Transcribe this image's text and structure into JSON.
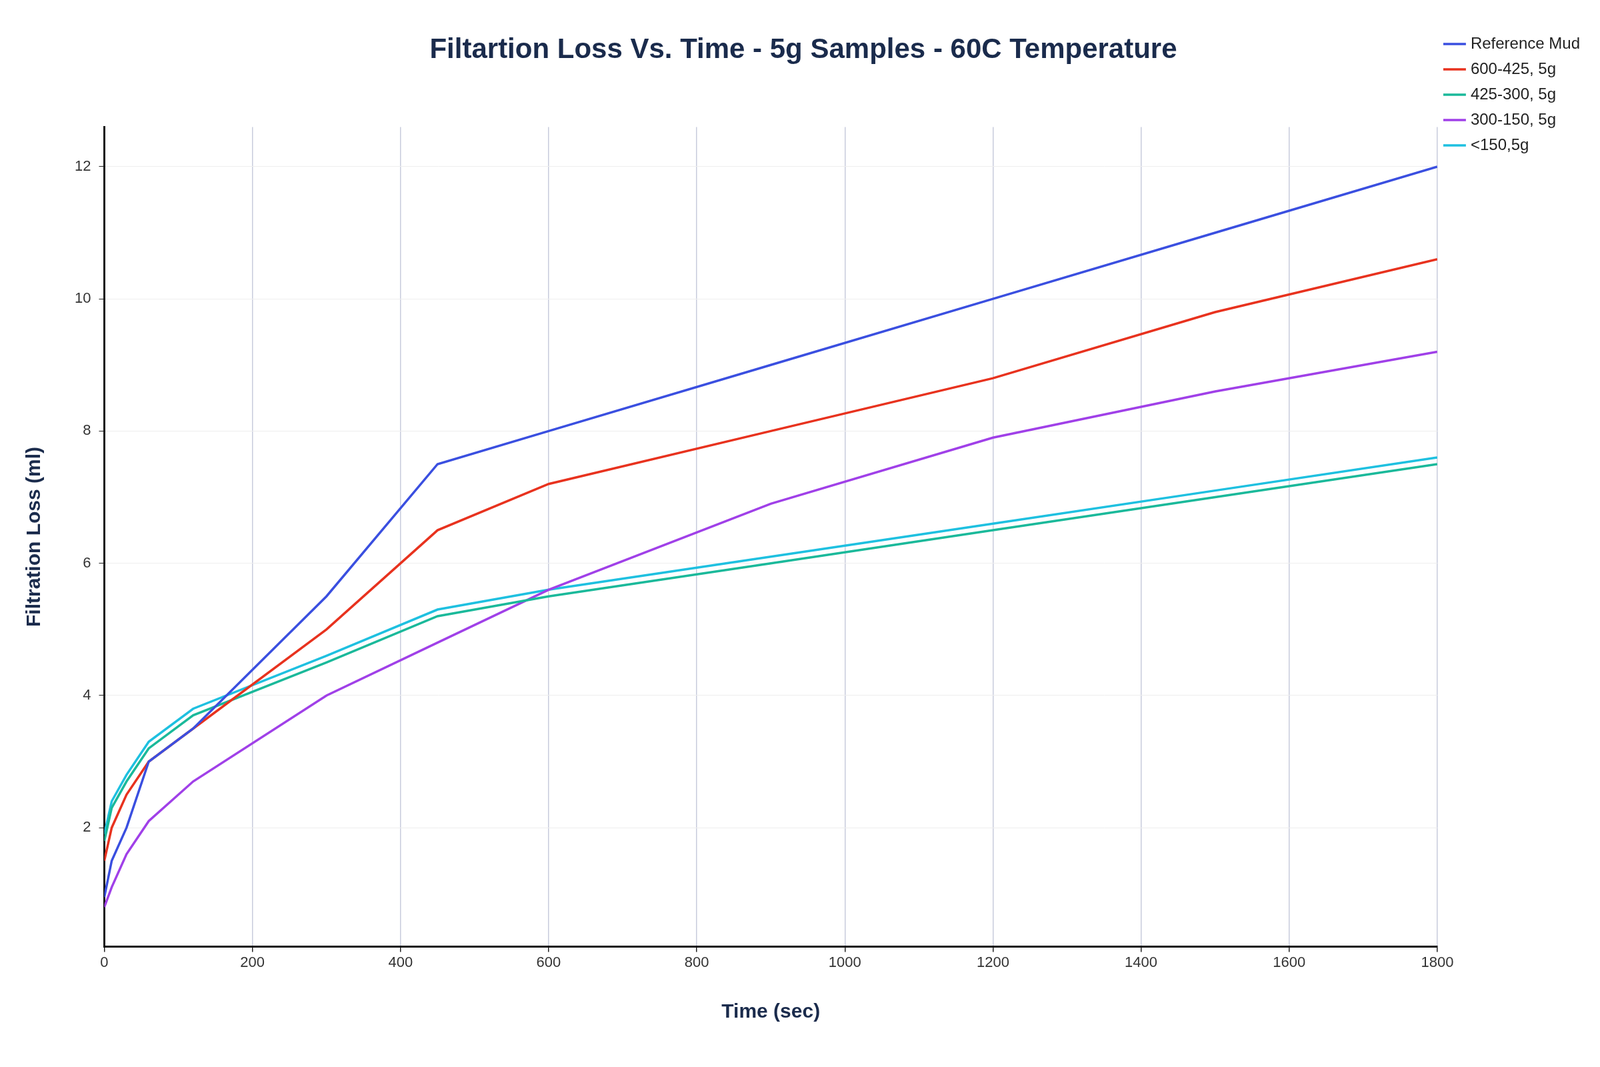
{
  "chart_data": {
    "type": "line",
    "title": "Filtartion Loss Vs. Time - 5g Samples - 60C Temperature",
    "x_label": "Time (sec)",
    "y_label": "Filtration Loss (ml)",
    "x": [
      0,
      10,
      30,
      60,
      120,
      300,
      450,
      600,
      900,
      1200,
      1500,
      1800
    ],
    "series": [
      {
        "name": "Reference Mud",
        "color": "#3a4fe0",
        "values": [
          0.95,
          1.5,
          2.0,
          3.0,
          3.5,
          5.5,
          7.5,
          8.0,
          9.0,
          10.0,
          11.0,
          12.0
        ]
      },
      {
        "name": "600-425, 5g",
        "color": "#e8321e",
        "values": [
          1.5,
          2.0,
          2.5,
          3.0,
          3.5,
          5.0,
          6.5,
          7.2,
          8.0,
          8.8,
          9.8,
          10.6
        ]
      },
      {
        "name": "425-300, 5g",
        "color": "#1ab99a",
        "values": [
          1.8,
          2.3,
          2.7,
          3.2,
          3.7,
          4.5,
          5.2,
          5.5,
          6.0,
          6.5,
          7.0,
          7.5
        ]
      },
      {
        "name": "300-150, 5g",
        "color": "#a040e8",
        "values": [
          0.8,
          1.1,
          1.6,
          2.1,
          2.7,
          4.0,
          4.8,
          5.6,
          6.9,
          7.9,
          8.6,
          9.2
        ]
      },
      {
        "name": "<150,5g",
        "color": "#1ec0e0",
        "values": [
          1.9,
          2.4,
          2.8,
          3.3,
          3.8,
          4.6,
          5.3,
          5.6,
          6.1,
          6.6,
          7.1,
          7.6
        ]
      }
    ],
    "xlim": [
      0,
      1800
    ],
    "xticks": [
      0,
      200,
      400,
      600,
      800,
      1000,
      1200,
      1400,
      1600,
      1800
    ],
    "ylim": [
      0.2,
      12.6
    ],
    "yticks": [
      2,
      4,
      6,
      8,
      10,
      12
    ],
    "grid": true,
    "legend": "right"
  }
}
